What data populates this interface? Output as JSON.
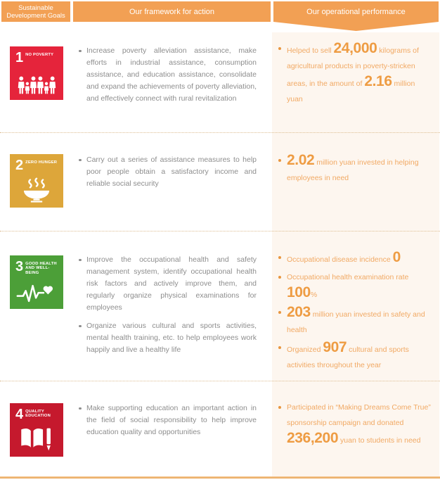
{
  "header": {
    "col_goals": "Sustainable Development Goals",
    "col_framework": "Our framework for action",
    "col_performance": "Our operational performance"
  },
  "colors": {
    "accent_orange": "#F2A054",
    "panel_background": "#FDF6EF",
    "performance_text": "#F1A964",
    "performance_number": "#EE9C43",
    "body_text": "#8D8D8D",
    "divider_dotted": "#DDBD92",
    "bottom_rule": "#E7A14E",
    "sdg1_red": "#E5243B",
    "sdg2_gold": "#DDA63A",
    "sdg3_green": "#4C9F38",
    "sdg4_crimson": "#C5192D"
  },
  "rows": [
    {
      "sdg": {
        "number": "1",
        "label": "No Poverty",
        "color": "#E5243B",
        "icon_name": "sdg-1-no-poverty-icon",
        "pictogram": "people"
      },
      "framework": [
        "Increase poverty alleviation assistance, make efforts in industrial assistance, consumption assistance, and education assistance, consolidate and expand the achievements of poverty alleviation, and effectively connect with rural revitalization"
      ],
      "performance": [
        {
          "parts": [
            {
              "t": "Helped to sell "
            },
            {
              "t": "24,000",
              "big": true
            },
            {
              "t": " kilograms of agricultural products in poverty-stricken areas, in the amount of "
            },
            {
              "t": "2.16",
              "big": true
            },
            {
              "t": " million yuan"
            }
          ]
        }
      ]
    },
    {
      "sdg": {
        "number": "2",
        "label": "Zero Hunger",
        "color": "#DDA63A",
        "icon_name": "sdg-2-zero-hunger-icon",
        "pictogram": "bowl"
      },
      "framework": [
        "Carry out a series of assistance measures to help poor people obtain a satisfactory income and reliable social security"
      ],
      "performance": [
        {
          "parts": [
            {
              "t": "2.02",
              "big": true
            },
            {
              "t": " million yuan invested in helping employees in need"
            }
          ]
        }
      ]
    },
    {
      "sdg": {
        "number": "3",
        "label": "Good Health and Well-Being",
        "color": "#4C9F38",
        "icon_name": "sdg-3-good-health-icon",
        "pictogram": "heartbeat"
      },
      "framework": [
        "Improve the occupational health and safety management system, identify occupational health risk factors and actively improve them, and regularly organize physical examinations for employees",
        "Organize various cultural and sports activities, mental health training, etc. to help employees work happily and live a healthy life"
      ],
      "performance": [
        {
          "parts": [
            {
              "t": "Occupational disease incidence "
            },
            {
              "t": "0",
              "big": true
            }
          ]
        },
        {
          "parts": [
            {
              "t": "Occupational health examination rate "
            },
            {
              "t": "100",
              "big": true
            },
            {
              "t": "%"
            }
          ]
        },
        {
          "parts": [
            {
              "t": "203",
              "big": true
            },
            {
              "t": " million yuan invested in safety and health"
            }
          ]
        },
        {
          "parts": [
            {
              "t": "Organized "
            },
            {
              "t": "907",
              "big": true
            },
            {
              "t": " cultural and sports activities throughout the year"
            }
          ]
        }
      ]
    },
    {
      "sdg": {
        "number": "4",
        "label": "Quality Education",
        "color": "#C5192D",
        "icon_name": "sdg-4-quality-education-icon",
        "pictogram": "book"
      },
      "framework": [
        "Make supporting education an important action in the field of social responsibility to help improve education quality and opportunities"
      ],
      "performance": [
        {
          "parts": [
            {
              "t": "Participated in “Making Dreams Come True” sponsorship campaign and donated "
            },
            {
              "t": "236,200",
              "big": true
            },
            {
              "t": " yuan to students in need"
            }
          ]
        }
      ]
    }
  ]
}
